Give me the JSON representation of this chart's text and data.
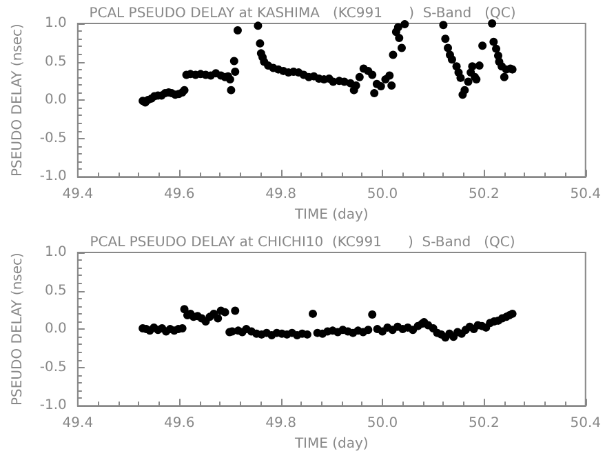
{
  "chart_data": [
    {
      "type": "scatter",
      "title": "PCAL PSEUDO DELAY at KASHIMA   (KC991      )  S-Band   (QC)",
      "xlabel": "TIME (day)",
      "ylabel": "PSEUDO DELAY (nsec)",
      "marker": "circle",
      "grid": false,
      "xlim": [
        49.4,
        50.4
      ],
      "ylim": [
        -1,
        1
      ],
      "xticks": [
        {
          "value": 49.4,
          "label": "49.4"
        },
        {
          "value": 49.6,
          "label": "49.6"
        },
        {
          "value": 49.8,
          "label": "49.8"
        },
        {
          "value": 50.0,
          "label": "50.0"
        },
        {
          "value": 50.2,
          "label": "50.2"
        },
        {
          "value": 50.4,
          "label": "50.4"
        }
      ],
      "yticks": [
        {
          "value": -1,
          "label": "-1.0"
        },
        {
          "value": -0.5,
          "label": "-0.5"
        },
        {
          "value": 0,
          "label": "0.0"
        },
        {
          "value": 0.5,
          "label": "0.5"
        },
        {
          "value": 1,
          "label": "1.0"
        }
      ],
      "series": [
        {
          "color": "#000000",
          "x": [
            49.528,
            49.533,
            49.538,
            49.545,
            49.551,
            49.558,
            49.565,
            49.572,
            49.579,
            49.585,
            49.592,
            49.599,
            49.606,
            49.61,
            49.614,
            49.622,
            49.632,
            49.642,
            49.652,
            49.662,
            49.672,
            49.682,
            49.69,
            49.696,
            49.7,
            49.702,
            49.708,
            49.71,
            49.715,
            49.755,
            49.759,
            49.761,
            49.764,
            49.767,
            49.775,
            49.785,
            49.795,
            49.805,
            49.815,
            49.825,
            49.835,
            49.845,
            49.855,
            49.865,
            49.875,
            49.885,
            49.895,
            49.903,
            49.915,
            49.925,
            49.937,
            49.944,
            49.948,
            49.955,
            49.963,
            49.972,
            49.98,
            49.984,
            49.989,
            49.997,
            50.006,
            50.014,
            50.018,
            50.021,
            50.027,
            50.031,
            50.033,
            50.038,
            50.044,
            50.12,
            50.124,
            50.129,
            50.133,
            50.137,
            50.146,
            50.15,
            50.154,
            50.158,
            50.162,
            50.169,
            50.174,
            50.177,
            50.182,
            50.185,
            50.191,
            50.197,
            50.216,
            50.219,
            50.224,
            50.228,
            50.23,
            50.235,
            50.24,
            50.244,
            50.252,
            50.256
          ],
          "values": [
            -0.01,
            -0.03,
            0,
            0.02,
            0.05,
            0.06,
            0.06,
            0.09,
            0.1,
            0.09,
            0.07,
            0.08,
            0.1,
            0.13,
            0.33,
            0.34,
            0.33,
            0.34,
            0.33,
            0.32,
            0.35,
            0.32,
            0.3,
            0.31,
            0.27,
            0.13,
            0.51,
            0.37,
            0.91,
            0.97,
            0.74,
            0.61,
            0.56,
            0.5,
            0.45,
            0.42,
            0.4,
            0.38,
            0.36,
            0.37,
            0.36,
            0.33,
            0.3,
            0.31,
            0.28,
            0.27,
            0.28,
            0.24,
            0.25,
            0.24,
            0.22,
            0.13,
            0.19,
            0.3,
            0.41,
            0.38,
            0.33,
            0.09,
            0.21,
            0.18,
            0.27,
            0.32,
            0.19,
            0.59,
            0.89,
            0.95,
            0.81,
            0.68,
            0.99,
            0.98,
            0.8,
            0.68,
            0.59,
            0.53,
            0.44,
            0.36,
            0.29,
            0.07,
            0.13,
            0.24,
            0.36,
            0.44,
            0.3,
            0.27,
            0.45,
            0.71,
            1.0,
            0.76,
            0.67,
            0.58,
            0.5,
            0.44,
            0.3,
            0.4,
            0.41,
            0.4
          ]
        }
      ]
    },
    {
      "type": "scatter",
      "title": "PCAL PSEUDO DELAY at CHICHI10  (KC991      )  S-Band   (QC)",
      "xlabel": "TIME (day)",
      "ylabel": "PSEUDO DELAY (nsec)",
      "marker": "circle",
      "grid": false,
      "xlim": [
        49.4,
        50.4
      ],
      "ylim": [
        -1,
        1
      ],
      "xticks": [
        {
          "value": 49.4,
          "label": "49.4"
        },
        {
          "value": 49.6,
          "label": "49.6"
        },
        {
          "value": 49.8,
          "label": "49.8"
        },
        {
          "value": 50.0,
          "label": "50.0"
        },
        {
          "value": 50.2,
          "label": "50.2"
        },
        {
          "value": 50.4,
          "label": "50.4"
        }
      ],
      "yticks": [
        {
          "value": -1,
          "label": "-1.0"
        },
        {
          "value": -0.5,
          "label": "-0.5"
        },
        {
          "value": 0,
          "label": "0.0"
        },
        {
          "value": 0.5,
          "label": "0.5"
        },
        {
          "value": 1,
          "label": "1.0"
        }
      ],
      "series": [
        {
          "color": "#000000",
          "x": [
            49.528,
            49.535,
            49.542,
            49.55,
            49.558,
            49.566,
            49.574,
            49.582,
            49.59,
            49.598,
            49.606,
            49.61,
            49.616,
            49.622,
            49.628,
            49.636,
            49.644,
            49.652,
            49.66,
            49.668,
            49.676,
            49.682,
            49.69,
            49.699,
            49.704,
            49.71,
            49.716,
            49.724,
            49.732,
            49.742,
            49.752,
            49.762,
            49.772,
            49.782,
            49.792,
            49.802,
            49.812,
            49.822,
            49.832,
            49.842,
            49.852,
            49.863,
            49.872,
            49.882,
            49.892,
            49.902,
            49.912,
            49.922,
            49.932,
            49.942,
            49.952,
            49.962,
            49.972,
            49.98,
            49.99,
            50.0,
            50.01,
            50.02,
            50.03,
            50.04,
            50.05,
            50.06,
            50.07,
            50.078,
            50.082,
            50.09,
            50.1,
            50.108,
            50.116,
            50.124,
            50.132,
            50.14,
            50.148,
            50.156,
            50.164,
            50.172,
            50.18,
            50.188,
            50.196,
            50.204,
            50.212,
            50.22,
            50.228,
            50.236,
            50.244,
            50.25,
            50.256
          ],
          "values": [
            0.01,
            0,
            -0.02,
            0.02,
            -0.01,
            0.01,
            -0.03,
            0,
            -0.02,
            0,
            0.01,
            0.26,
            0.18,
            0.2,
            0.16,
            0.17,
            0.14,
            0.1,
            0.16,
            0.2,
            0.14,
            0.24,
            0.22,
            -0.04,
            -0.03,
            0.24,
            -0.02,
            -0.04,
            0,
            -0.03,
            -0.06,
            -0.07,
            -0.05,
            -0.08,
            -0.05,
            -0.06,
            -0.07,
            -0.05,
            -0.08,
            -0.06,
            -0.07,
            0.2,
            -0.05,
            -0.06,
            -0.03,
            -0.02,
            -0.04,
            -0.01,
            -0.03,
            -0.05,
            -0.02,
            -0.04,
            -0.01,
            0.19,
            0,
            -0.03,
            0.02,
            -0.01,
            0.03,
            0,
            0.02,
            -0.01,
            0.04,
            0.07,
            0.09,
            0.05,
            0.01,
            -0.05,
            -0.07,
            -0.11,
            -0.06,
            -0.1,
            -0.04,
            -0.06,
            -0.01,
            0.03,
            0,
            0.05,
            0.04,
            0.02,
            0.08,
            0.1,
            0.11,
            0.14,
            0.16,
            0.18,
            0.2
          ]
        }
      ]
    }
  ]
}
